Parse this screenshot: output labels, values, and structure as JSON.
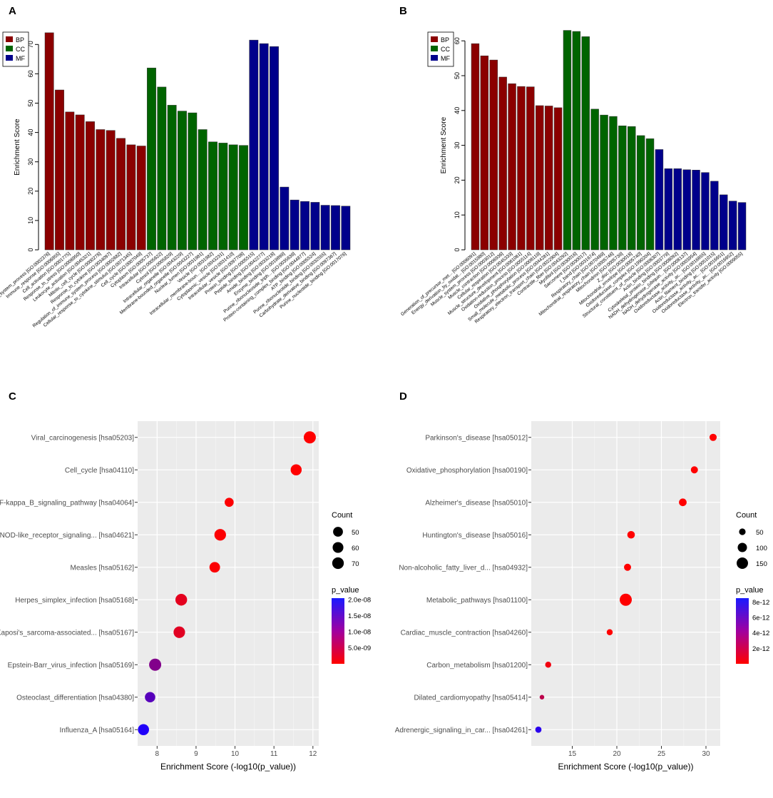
{
  "colors": {
    "BP": "#8b0000",
    "CC": "#006400",
    "MF": "#00008b",
    "high_p_C": "#1a1aff",
    "low_p": "#ff0000",
    "panel_bg": "#ebebeb"
  },
  "chart_data": [
    {
      "panel": "A",
      "type": "bar",
      "ylabel": "Enrichment Score",
      "ylim": [
        0,
        75
      ],
      "yticks": [
        0,
        10,
        20,
        30,
        40,
        50,
        60,
        70
      ],
      "legend": [
        "BP",
        "CC",
        "MF"
      ],
      "legend_position": "top-left",
      "categories": [
        "Immune_system_process [GO:0002376]",
        "Immune_response [GO:0006955]",
        "Cell_activation [GO:0001775]",
        "Response_to_stress [GO:0006950]",
        "Leukocyte_activation [GO:0045321]",
        "Mitotic_cell_cycle [GO:0000278]",
        "Response_to_cytokine [GO:0034097]",
        "Regulation_of_immune_system_process [GO:0002682]",
        "Cellular_response_to_cytokine_stimulus [GO:0071345]",
        "Cell_cycle [GO:0007049]",
        "Cytoplasm [GO:0005737]",
        "Intracellular [GO:0005622]",
        "Cytosol [GO:0005829]",
        "Intracellular_organelle [GO:0043229]",
        "Membrane-bounded_organelle [GO:0043227]",
        "Nuclear_lumen [GO:0031981]",
        "Vesicle [GO:0031982]",
        "Intracellular_membrane-boun... [GO:0043231]",
        "Cytoplasmic_vesicle [GO:0031410]",
        "Intracellular_vesicle [GO:0097708]",
        "Protein_binding [GO:0005515]",
        "Peptide_binding [GO:0042277]",
        "Amide_binding [GO:0033218]",
        "Enzyme_binding [GO:0019899]",
        "Purine_ribonucleoside_triph... [GO:0035639]",
        "Protein-containing_complex_binding [GO:0044877]",
        "ATP_binding [GO:0005524]",
        "Purine_ribonucleotide_binding [GO:0032555]",
        "Carbohydrate_derivative_binding [GO:0097367]",
        "Purine_nucleotide_binding [GO:0017076]"
      ],
      "groups": [
        "BP",
        "BP",
        "BP",
        "BP",
        "BP",
        "BP",
        "BP",
        "BP",
        "BP",
        "BP",
        "CC",
        "CC",
        "CC",
        "CC",
        "CC",
        "CC",
        "CC",
        "CC",
        "CC",
        "CC",
        "MF",
        "MF",
        "MF",
        "MF",
        "MF",
        "MF",
        "MF",
        "MF",
        "MF",
        "MF"
      ],
      "values": [
        74,
        54.5,
        47,
        46,
        43.7,
        41,
        40.7,
        38,
        35.8,
        35.4,
        62,
        55.5,
        49.3,
        47.3,
        46.7,
        41,
        36.8,
        36.4,
        35.8,
        35.6,
        71.5,
        70.3,
        69.3,
        21.4,
        17,
        16.5,
        16.2,
        15.2,
        15.1,
        14.9
      ]
    },
    {
      "panel": "B",
      "type": "bar",
      "ylabel": "Enrichment Score",
      "ylim": [
        0,
        64
      ],
      "yticks": [
        0,
        10,
        20,
        30,
        40,
        50,
        60
      ],
      "legend": [
        "BP",
        "CC",
        "MF"
      ],
      "legend_position": "top-left",
      "categories": [
        "Generation_of_precursor_met... [GO:0006091]",
        "Energy_derivation_by_oxidat... [GO:0015980]",
        "Muscle_system_process [GO:0003012]",
        "Muscle_contraction [GO:0006936]",
        "Cellular_respiration [GO:0045333]",
        "Muscle_structure_development [GO:0061061]",
        "Oxidation-reduction_process [GO:0055114]",
        "Oxidative_phosphorylation [GO:0006119]",
        "Small_molecule_metabolic_process [GO:0044281]",
        "Respiratory_electron_transport_chain [GO:0022904]",
        "Contractile_fiber [GO:0043292]",
        "Myofibril [GO:0030016]",
        "Sarcomere [GO:0030017]",
        "I_band [GO:0031674]",
        "Respiratory_chain [GO:0070469]",
        "Mitochondrial_respiratory_chain [GO:0005746]",
        "Mitochondrion [GO:0005739]",
        "Z_disc [GO:0030018]",
        "Mitochondrial_envelope [GO:0005740]",
        "Oxidoreductase_complex [GO:1990204]",
        "Structural_constituent_of_muscle [GO:0008307]",
        "Actin_binding [GO:0003779]",
        "Cytoskeletal_protein_binding [GO:0008092]",
        "NADH_dehydrogenase_(ubiquin... [GO:0008137]",
        "NADH_dehydrogenase_activity [GO:0003954]",
        "Oxidoreductase_activity,_ac... [GO:0016655]",
        "Actin_filament_binding [GO:0051015]",
        "Oxidoreductase_activity,_ac... [GO:0016651]",
        "Oxidoreductase_activity,_ac... [GO:0016652]",
        "Electron_transfer_activity [GO:0009055]"
      ],
      "groups": [
        "BP",
        "BP",
        "BP",
        "BP",
        "BP",
        "BP",
        "BP",
        "BP",
        "BP",
        "BP",
        "CC",
        "CC",
        "CC",
        "CC",
        "CC",
        "CC",
        "CC",
        "CC",
        "CC",
        "CC",
        "MF",
        "MF",
        "MF",
        "MF",
        "MF",
        "MF",
        "MF",
        "MF",
        "MF",
        "MF"
      ],
      "values": [
        59.2,
        55.7,
        54.5,
        49.6,
        47.7,
        46.9,
        46.8,
        41.4,
        41.3,
        40.8,
        63,
        62.7,
        61.2,
        40.4,
        38.7,
        38.3,
        35.6,
        35.4,
        32.8,
        31.9,
        28.8,
        23.3,
        23.3,
        23,
        22.9,
        22.2,
        19.7,
        15.8,
        14,
        13.6
      ]
    },
    {
      "panel": "C",
      "type": "scatter",
      "xlabel": "Enrichment Score (-log10(p_value))",
      "xlim": [
        7.5,
        12.15
      ],
      "xticks": [
        8,
        9,
        10,
        11,
        12
      ],
      "size_legend_title": "Count",
      "size_legend": [
        50,
        60,
        70
      ],
      "color_legend_title": "p_value",
      "color_legend": [
        "2.0e-08",
        "1.5e-08",
        "1.0e-08",
        "5.0e-09"
      ],
      "color_legend_values": [
        2e-08,
        1.5e-08,
        1e-08,
        5e-09
      ],
      "p_range": [
        0,
        2.05e-08
      ],
      "categories": [
        "Viral_carcinogenesis [hsa05203]",
        "Cell_cycle [hsa04110]",
        "NF-kappa_B_signaling_pathway [hsa04064]",
        "NOD-like_receptor_signaling... [hsa04621]",
        "Measles [hsa05162]",
        "Herpes_simplex_infection [hsa05168]",
        "Kaposi's_sarcoma-associated... [hsa05167]",
        "Epstein-Barr_virus_infection [hsa05169]",
        "Osteoclast_differentiation [hsa04380]",
        "Influenza_A [hsa05164]"
      ],
      "x": [
        11.92,
        11.57,
        9.85,
        9.62,
        9.48,
        8.62,
        8.57,
        7.95,
        7.82,
        7.65
      ],
      "count": [
        76,
        63,
        42,
        70,
        58,
        71,
        69,
        76,
        56,
        64
      ],
      "p_value": [
        1.2e-12,
        2.7e-12,
        1.4e-10,
        2.4e-10,
        3.3e-10,
        2.4e-09,
        2.7e-09,
        1.12e-08,
        1.5e-08,
        2e-08
      ]
    },
    {
      "panel": "D",
      "type": "scatter",
      "xlabel": "Enrichment Score (-log10(p_value))",
      "xlim": [
        10.4,
        31.6
      ],
      "xticks": [
        15,
        20,
        25,
        30
      ],
      "size_legend_title": "Count",
      "size_legend": [
        50,
        100,
        150
      ],
      "color_legend_title": "p_value",
      "color_legend": [
        "8e-12",
        "6e-12",
        "4e-12",
        "2e-12"
      ],
      "color_legend_values": [
        8e-12,
        6e-12,
        4e-12,
        2e-12
      ],
      "p_range": [
        0,
        8.5e-12
      ],
      "categories": [
        "Parkinson's_disease [hsa05012]",
        "Oxidative_phosphorylation [hsa00190]",
        "Alzheimer's_disease [hsa05010]",
        "Huntington's_disease [hsa05016]",
        "Non-alcoholic_fatty_liver_d... [hsa04932]",
        "Metabolic_pathways [hsa01100]",
        "Cardiac_muscle_contraction [hsa04260]",
        "Carbon_metabolism [hsa01200]",
        "Dilated_cardiomyopathy [hsa05414]",
        "Adrenergic_signaling_in_car... [hsa04261]"
      ],
      "x": [
        30.8,
        28.7,
        27.4,
        21.6,
        21.2,
        21.0,
        19.2,
        12.3,
        11.6,
        11.2
      ],
      "count": [
        60,
        58,
        68,
        66,
        58,
        170,
        42,
        42,
        25,
        45
      ],
      "p_value": [
        1e-31,
        2e-29,
        4e-28,
        2.5e-22,
        6e-22,
        1e-21,
        6e-20,
        5e-13,
        2.5e-12,
        7.9e-12
      ]
    }
  ],
  "panel_letters": [
    "A",
    "B",
    "C",
    "D"
  ]
}
